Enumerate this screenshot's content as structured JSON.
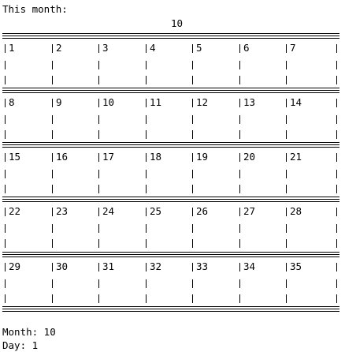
{
  "header": {
    "label": "This month:",
    "month_number": "10"
  },
  "weeks": [
    [
      "1",
      "2",
      "3",
      "4",
      "5",
      "6",
      "7"
    ],
    [
      "8",
      "9",
      "10",
      "11",
      "12",
      "13",
      "14"
    ],
    [
      "15",
      "16",
      "17",
      "18",
      "19",
      "20",
      "21"
    ],
    [
      "22",
      "23",
      "24",
      "25",
      "26",
      "27",
      "28"
    ],
    [
      "29",
      "30",
      "31",
      "32",
      "33",
      "34",
      "35"
    ]
  ],
  "footer": {
    "month_line": "Month: 10",
    "day_line": "Day: 1"
  }
}
